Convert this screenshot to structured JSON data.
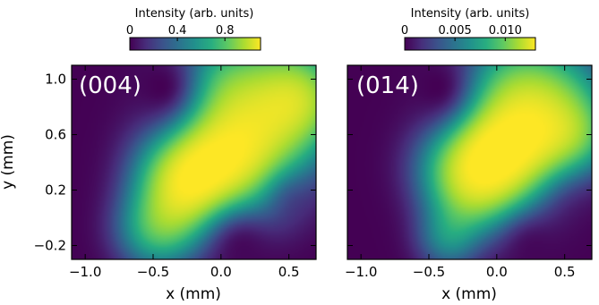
{
  "colors": {
    "colormap": "viridis",
    "frame": "#000000",
    "panel_label": "#ffffff"
  },
  "chart_data": [
    {
      "type": "heatmap",
      "panel_label": "(004)",
      "xlabel": "x (mm)",
      "ylabel": "y (mm)",
      "xlim": [
        -1.1,
        0.7
      ],
      "ylim": [
        -0.3,
        1.1
      ],
      "xticks": [
        -1.0,
        -0.5,
        0.0,
        0.5
      ],
      "xtick_labels": [
        "−1.0",
        "−0.5",
        "0.0",
        "0.5"
      ],
      "yticks": [
        -0.2,
        0.2,
        0.6,
        1.0
      ],
      "ytick_labels": [
        "−0.2",
        "0.2",
        "0.6",
        "1.0"
      ],
      "colorbar": {
        "label": "Intensity (arb. units)",
        "range": [
          0,
          1.1
        ],
        "ticks": [
          0,
          0.4,
          0.8
        ],
        "tick_labels": [
          "0",
          "0.4",
          "0.8"
        ]
      },
      "color_scale": "fraction of colorbar range",
      "intensity_peaks": [
        {
          "x": -0.25,
          "y": 0.28,
          "w": 0.22,
          "value": 0.62
        },
        {
          "x": -0.15,
          "y": 0.48,
          "w": 0.25,
          "value": 0.45
        },
        {
          "x": -0.3,
          "y": 0.05,
          "w": 0.22,
          "value": 0.4
        },
        {
          "x": 0.05,
          "y": 0.35,
          "w": 0.25,
          "value": 0.4
        },
        {
          "x": 0.1,
          "y": 0.7,
          "w": 0.3,
          "value": 0.4
        },
        {
          "x": 0.4,
          "y": 0.9,
          "w": 0.3,
          "value": 0.45
        },
        {
          "x": 0.6,
          "y": 0.85,
          "w": 0.2,
          "value": 0.45
        },
        {
          "x": -0.1,
          "y": 0.95,
          "w": 0.22,
          "value": 0.35
        },
        {
          "x": 0.35,
          "y": 0.5,
          "w": 0.25,
          "value": 0.3
        },
        {
          "x": -0.5,
          "y": -0.1,
          "w": 0.18,
          "value": 0.3
        },
        {
          "x": 0.3,
          "y": 0.2,
          "w": 0.2,
          "value": 0.2
        }
      ],
      "low_regions": [
        {
          "x": -0.45,
          "y": 0.95,
          "w": 0.28,
          "value": 1.0
        },
        {
          "x": 0.15,
          "y": -0.2,
          "w": 0.22,
          "value": 0.9
        },
        {
          "x": 0.5,
          "y": 0.15,
          "w": 0.18,
          "value": 0.6
        }
      ]
    },
    {
      "type": "heatmap",
      "panel_label": "(014)",
      "xlabel": "x (mm)",
      "ylabel": "",
      "xlim": [
        -1.1,
        0.7
      ],
      "ylim": [
        -0.3,
        1.1
      ],
      "xticks": [
        -1.0,
        -0.5,
        0.0,
        0.5
      ],
      "xtick_labels": [
        "−1.0",
        "−0.5",
        "0.0",
        "0.5"
      ],
      "yticks": [
        -0.2,
        0.2,
        0.6,
        1.0
      ],
      "ytick_labels": [],
      "colorbar": {
        "label": "Intensity (arb. units)",
        "range": [
          0,
          0.013
        ],
        "ticks": [
          0,
          0.005,
          0.01
        ],
        "tick_labels": [
          "0",
          "0.005",
          "0.010"
        ]
      },
      "color_scale": "fraction of colorbar range",
      "intensity_peaks": [
        {
          "x": -0.08,
          "y": 0.52,
          "w": 0.22,
          "value": 0.6
        },
        {
          "x": 0.05,
          "y": 0.35,
          "w": 0.25,
          "value": 0.45
        },
        {
          "x": -0.25,
          "y": 0.4,
          "w": 0.22,
          "value": 0.4
        },
        {
          "x": 0.15,
          "y": 0.7,
          "w": 0.25,
          "value": 0.4
        },
        {
          "x": 0.1,
          "y": 0.95,
          "w": 0.25,
          "value": 0.35
        },
        {
          "x": 0.45,
          "y": 0.85,
          "w": 0.25,
          "value": 0.4
        },
        {
          "x": 0.35,
          "y": 0.5,
          "w": 0.22,
          "value": 0.4
        },
        {
          "x": -0.2,
          "y": 0.15,
          "w": 0.2,
          "value": 0.35
        },
        {
          "x": 0.1,
          "y": 0.12,
          "w": 0.2,
          "value": 0.3
        },
        {
          "x": -0.35,
          "y": -0.15,
          "w": 0.15,
          "value": 0.25
        },
        {
          "x": -0.2,
          "y": 0.9,
          "w": 0.2,
          "value": 0.2
        },
        {
          "x": 0.6,
          "y": 0.6,
          "w": 0.18,
          "value": 0.3
        }
      ],
      "low_regions": [
        {
          "x": -0.45,
          "y": 0.95,
          "w": 0.28,
          "value": 1.0
        },
        {
          "x": 0.25,
          "y": -0.2,
          "w": 0.25,
          "value": 0.9
        },
        {
          "x": 0.55,
          "y": 0.1,
          "w": 0.2,
          "value": 0.5
        }
      ]
    }
  ]
}
